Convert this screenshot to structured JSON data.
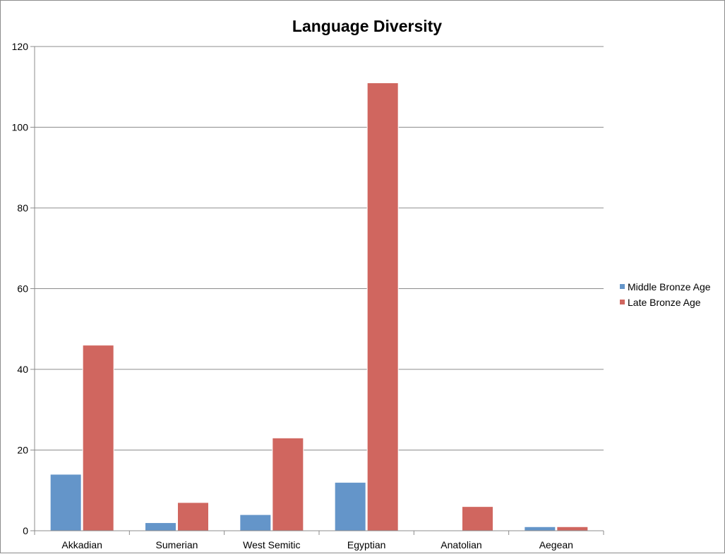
{
  "chart_data": {
    "type": "bar",
    "title": "Language Diversity",
    "xlabel": "",
    "ylabel": "",
    "categories": [
      "Akkadian",
      "Sumerian",
      "West Semitic",
      "Egyptian",
      "Anatolian",
      "Aegean"
    ],
    "series": [
      {
        "name": "Middle Bronze Age",
        "color": "#6495c9",
        "values": [
          14,
          2,
          4,
          12,
          0,
          1
        ]
      },
      {
        "name": "Late Bronze Age",
        "color": "#d0665f",
        "values": [
          46,
          7,
          23,
          111,
          6,
          1
        ]
      }
    ],
    "ylim": [
      0,
      120
    ],
    "yticks": [
      0,
      20,
      40,
      60,
      80,
      100,
      120
    ],
    "grid": true,
    "legend_position": "right"
  }
}
